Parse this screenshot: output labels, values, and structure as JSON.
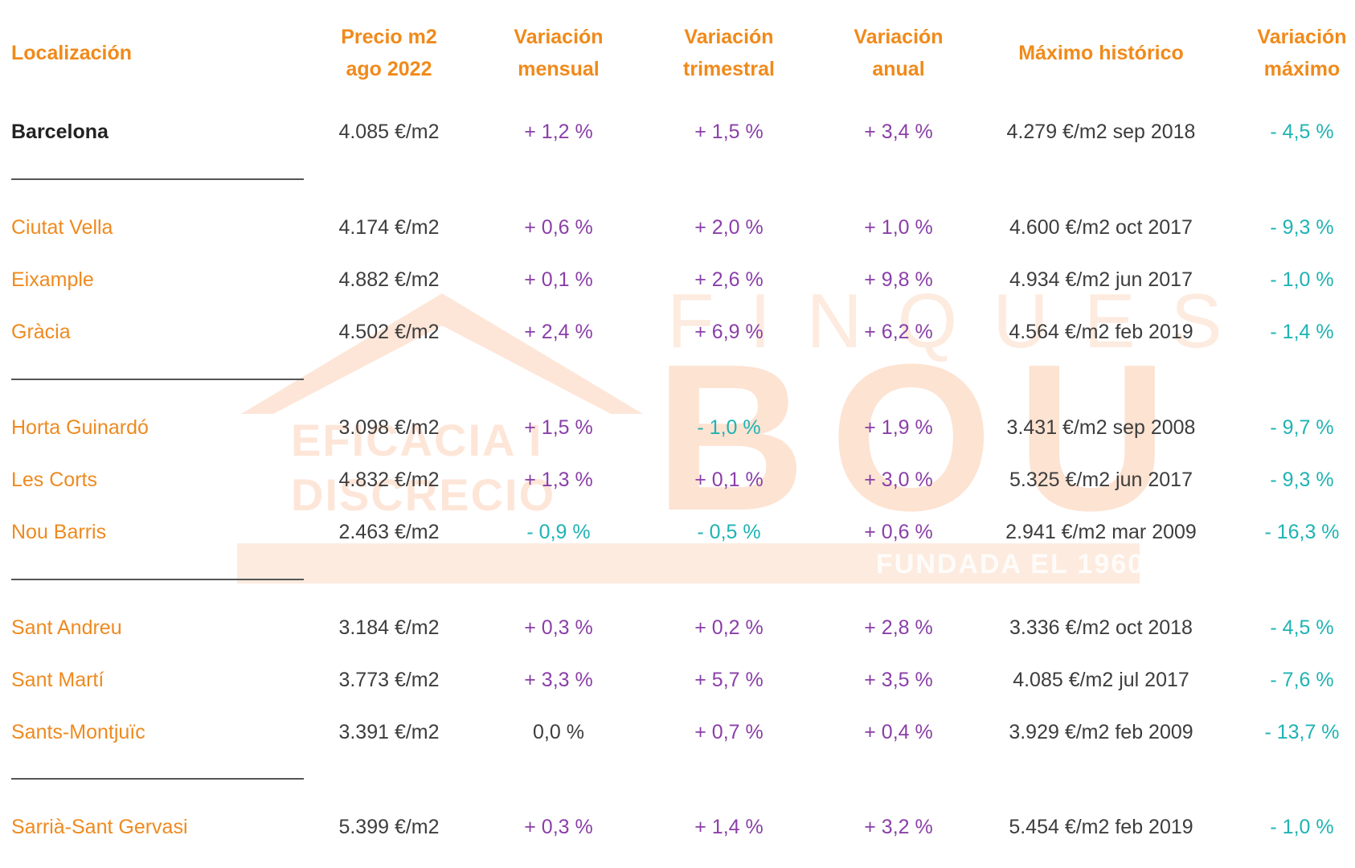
{
  "headers": {
    "localizacion": "Localización",
    "precio": [
      "Precio m2",
      "ago 2022"
    ],
    "mensual": [
      "Variación",
      "mensual"
    ],
    "trimestral": [
      "Variación",
      "trimestral"
    ],
    "anual": [
      "Variación",
      "anual"
    ],
    "maximo": "Máximo histórico",
    "var_maximo": [
      "Variación",
      "máximo"
    ]
  },
  "rows": [
    {
      "name": "Barcelona",
      "precio": "4.085 €/m2",
      "mensual": "+ 1,2 %",
      "trimestral": "+ 1,5 %",
      "anual": "+ 3,4 %",
      "maximo": "4.279 €/m2 sep 2018",
      "var_maximo": "- 4,5 %"
    },
    {
      "name": "Ciutat Vella",
      "precio": "4.174 €/m2",
      "mensual": "+ 0,6 %",
      "trimestral": "+ 2,0 %",
      "anual": "+ 1,0 %",
      "maximo": "4.600 €/m2 oct 2017",
      "var_maximo": "- 9,3 %"
    },
    {
      "name": "Eixample",
      "precio": "4.882 €/m2",
      "mensual": "+ 0,1 %",
      "trimestral": "+ 2,6 %",
      "anual": "+ 9,8 %",
      "maximo": "4.934 €/m2 jun 2017",
      "var_maximo": "- 1,0 %"
    },
    {
      "name": "Gràcia",
      "precio": "4.502 €/m2",
      "mensual": "+ 2,4 %",
      "trimestral": "+ 6,9 %",
      "anual": "+ 6,2 %",
      "maximo": "4.564 €/m2 feb 2019",
      "var_maximo": "- 1,4 %"
    },
    {
      "name": "Horta Guinardó",
      "precio": "3.098 €/m2",
      "mensual": "+ 1,5 %",
      "trimestral": "- 1,0 %",
      "anual": "+ 1,9 %",
      "maximo": "3.431 €/m2 sep 2008",
      "var_maximo": "- 9,7 %"
    },
    {
      "name": "Les Corts",
      "precio": "4.832 €/m2",
      "mensual": "+ 1,3 %",
      "trimestral": "+ 0,1 %",
      "anual": "+ 3,0 %",
      "maximo": "5.325 €/m2 jun 2017",
      "var_maximo": "- 9,3 %"
    },
    {
      "name": "Nou Barris",
      "precio": "2.463 €/m2",
      "mensual": "- 0,9 %",
      "trimestral": "- 0,5 %",
      "anual": "+ 0,6 %",
      "maximo": "2.941 €/m2 mar 2009",
      "var_maximo": "- 16,3 %"
    },
    {
      "name": "Sant Andreu",
      "precio": "3.184 €/m2",
      "mensual": "+ 0,3 %",
      "trimestral": "+ 0,2 %",
      "anual": "+ 2,8 %",
      "maximo": "3.336 €/m2 oct 2018",
      "var_maximo": "- 4,5 %"
    },
    {
      "name": "Sant Martí",
      "precio": "3.773 €/m2",
      "mensual": "+ 3,3 %",
      "trimestral": "+ 5,7 %",
      "anual": "+ 3,5 %",
      "maximo": "4.085 €/m2 jul 2017",
      "var_maximo": "- 7,6 %"
    },
    {
      "name": "Sants-Montjuïc",
      "precio": "3.391 €/m2",
      "mensual": "0,0 %",
      "trimestral": "+ 0,7 %",
      "anual": "+ 0,4 %",
      "maximo": "3.929 €/m2 feb 2009",
      "var_maximo": "- 13,7 %"
    },
    {
      "name": "Sarrià-Sant Gervasi",
      "precio": "5.399 €/m2",
      "mensual": "+ 0,3 %",
      "trimestral": "+ 1,4 %",
      "anual": "+ 3,2 %",
      "maximo": "5.454 €/m2 feb 2019",
      "var_maximo": "- 1,0 %"
    }
  ],
  "watermark": {
    "finques": "FINQUES",
    "bou": "BOU",
    "line1": "EFICACIA I",
    "line2": "DISCRECIO",
    "fundada": "FUNDADA EL 1960"
  },
  "colors": {
    "header": "#f08a1a",
    "district": "#ee8a1f",
    "positive": "#8a3fa8",
    "negative": "#1fb3b3",
    "watermark": "#fde3d2"
  }
}
